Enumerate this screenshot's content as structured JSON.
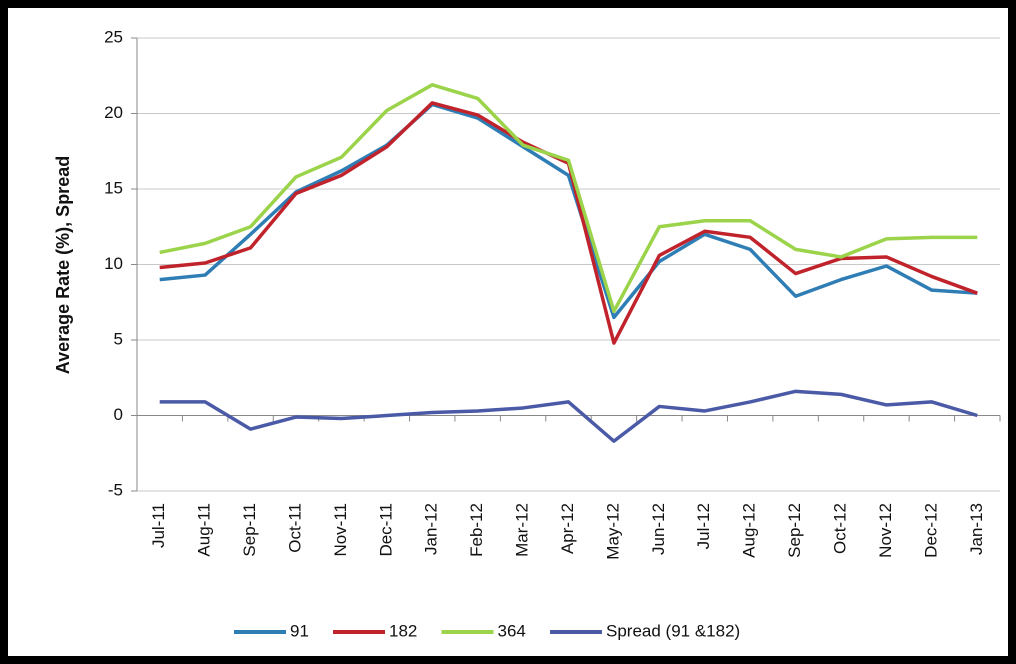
{
  "chart_data": {
    "type": "line",
    "y_label": "Average Rate (%), Spread",
    "categories": [
      "Jul-11",
      "Aug-11",
      "Sep-11",
      "Oct-11",
      "Nov-11",
      "Dec-11",
      "Jan-12",
      "Feb-12",
      "Mar-12",
      "Apr-12",
      "May-12",
      "Jun-12",
      "Jul-12",
      "Aug-12",
      "Sep-12",
      "Oct-12",
      "Nov-12",
      "Dec-12",
      "Jan-13"
    ],
    "series": [
      {
        "name": "91",
        "color": "#2e7db5",
        "values": [
          9.0,
          9.3,
          12.0,
          14.8,
          16.2,
          17.9,
          20.6,
          19.7,
          17.8,
          15.9,
          6.5,
          10.2,
          12.0,
          11.0,
          7.9,
          9.0,
          9.9,
          8.3,
          8.1
        ]
      },
      {
        "name": "182",
        "color": "#c0232b",
        "values": [
          9.8,
          10.1,
          11.1,
          14.7,
          15.9,
          17.8,
          20.7,
          19.9,
          18.1,
          16.7,
          4.8,
          10.6,
          12.2,
          11.8,
          9.4,
          10.4,
          10.5,
          9.2,
          8.1
        ]
      },
      {
        "name": "364",
        "color": "#9bd34a",
        "values": [
          10.8,
          11.4,
          12.5,
          15.8,
          17.1,
          20.2,
          21.9,
          21.0,
          17.9,
          16.9,
          6.9,
          12.5,
          12.9,
          12.9,
          11.0,
          10.5,
          11.7,
          11.8,
          11.8
        ]
      },
      {
        "name": "Spread (91 &182)",
        "color": "#4a5aa6",
        "values": [
          0.9,
          0.9,
          -0.9,
          -0.1,
          -0.2,
          0.0,
          0.2,
          0.3,
          0.5,
          0.9,
          -1.7,
          0.6,
          0.3,
          0.9,
          1.6,
          1.4,
          0.7,
          0.9,
          0.0
        ]
      }
    ],
    "ylim": [
      -5,
      25
    ],
    "yticks": [
      -5,
      0,
      5,
      10,
      15,
      20,
      25
    ],
    "grid": true,
    "legend": "bottom"
  }
}
